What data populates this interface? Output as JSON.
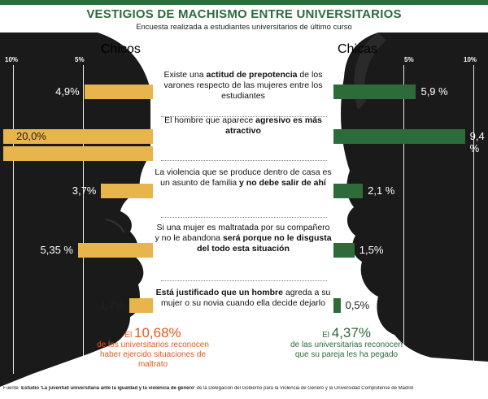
{
  "header": {
    "title": "VESTIGIOS DE MACHISMO ENTRE UNIVERSITARIOS",
    "subtitle": "Encuesta realizada a estudiantes universitarios de último curso"
  },
  "colors": {
    "chicos": "#e8b44c",
    "chicas": "#2e6b3a",
    "chicos_text": "#e05a1e",
    "dark_bg": "#1a1a1a",
    "title": "#2e6b3a"
  },
  "legend": {
    "chicos": "Chicos",
    "chicas": "Chicas"
  },
  "axis": {
    "left_ticks": [
      "10%",
      "5%"
    ],
    "right_ticks": [
      "5%",
      "10%"
    ]
  },
  "chart_data": {
    "type": "bar",
    "orientation": "horizontal-diverging",
    "title": "VESTIGIOS DE MACHISMO ENTRE UNIVERSITARIOS",
    "subtitle": "Encuesta realizada a estudiantes universitarios de último curso",
    "xlim": [
      0,
      10
    ],
    "categories": [
      "Existe una actitud de prepotencia de los varones respecto de las mujeres entre los estudiantes",
      "El hombre que aparece agresivo es más atractivo",
      "La violencia que se produce dentro de casa es un asunto de familia y no debe salir de ahí",
      "Si una mujer es maltratada por su compañero y no le abandona será porque no le disgusta del todo esta situación",
      "Está justificado que un hombre agreda a su mujer o su novia cuando ella decide dejarlo"
    ],
    "series": [
      {
        "name": "Chicos",
        "values": [
          4.9,
          20.0,
          3.7,
          5.35,
          1.7
        ],
        "labels": [
          "4,9%",
          "20,0%",
          "3,7%",
          "5,35 %",
          "1,7%"
        ]
      },
      {
        "name": "Chicas",
        "values": [
          5.9,
          9.4,
          2.1,
          1.5,
          0.5
        ],
        "labels": [
          "5,9 %",
          "9,4 %",
          "2,1 %",
          "1,5%",
          "0,5%"
        ]
      }
    ],
    "panels": [
      {
        "pre": "Existe una ",
        "hl": "actitud de prepotencia",
        "post": " de los varones respecto de las mujeres entre los estudiantes"
      },
      {
        "pre": "El hombre que aparece ",
        "hl": "agresivo es más atractivo",
        "post": ""
      },
      {
        "pre": "La violencia que se produce dentro de casa es un asunto de familia ",
        "hl": "y no debe salir de ahí",
        "post": ""
      },
      {
        "pre": "Si una mujer es maltratada por su compañero y no le abandona ",
        "hl": "será porque no le disgusta del todo esta situación",
        "post": ""
      },
      {
        "pre": "",
        "hl": "Está justificado que un hombre",
        "post": " agreda a su mujer o su novia cuando ella decide dejarlo"
      }
    ]
  },
  "summary": {
    "chicos": {
      "pre": "El ",
      "pct": "10,68%",
      "text": "de los universitarios reconocen haber ejercido situaciones de maltrato"
    },
    "chicas": {
      "pre": "El ",
      "pct": "4,37%",
      "text": "de las universitarias reconocen que su pareja les ha pegado"
    }
  },
  "footer": {
    "pre": "Fuente: ",
    "bold": "Estudio 'La juventud universitaria ante la igualdad y la violencia de género'",
    "post": " de la Delegación del Gobierno para la Violencia de Género y la Universidad Complutense de Madrid"
  }
}
